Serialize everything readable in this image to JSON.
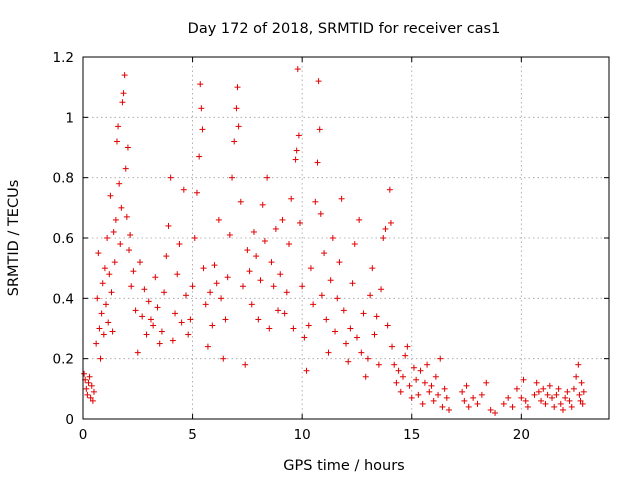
{
  "chart_data": {
    "type": "scatter",
    "title": "Day 172 of 2018, SRMTID for receiver cas1",
    "xlabel": "GPS time / hours",
    "ylabel": "SRMTID / TECUs",
    "xlim": [
      0,
      24
    ],
    "ylim": [
      0,
      1.2
    ],
    "x_ticks": [
      0,
      5,
      10,
      15,
      20
    ],
    "x_tick_labels": [
      "0",
      "5",
      "10",
      "15",
      "20"
    ],
    "y_ticks": [
      0,
      0.2,
      0.4,
      0.6,
      0.8,
      1.0,
      1.2
    ],
    "y_tick_labels": [
      "0",
      "0.2",
      "0.4",
      "0.6",
      "0.8",
      "1",
      "1.2"
    ],
    "grid": true,
    "marker": "+",
    "color": "#e00000",
    "series": [
      {
        "name": "SRMTID",
        "points": [
          [
            0.05,
            0.15
          ],
          [
            0.1,
            0.13
          ],
          [
            0.15,
            0.1
          ],
          [
            0.2,
            0.08
          ],
          [
            0.25,
            0.12
          ],
          [
            0.3,
            0.14
          ],
          [
            0.35,
            0.07
          ],
          [
            0.4,
            0.11
          ],
          [
            0.45,
            0.06
          ],
          [
            0.5,
            0.09
          ],
          [
            0.6,
            0.25
          ],
          [
            0.65,
            0.4
          ],
          [
            0.7,
            0.55
          ],
          [
            0.75,
            0.3
          ],
          [
            0.8,
            0.2
          ],
          [
            0.85,
            0.35
          ],
          [
            0.9,
            0.45
          ],
          [
            0.95,
            0.28
          ],
          [
            1.0,
            0.5
          ],
          [
            1.05,
            0.38
          ],
          [
            1.1,
            0.6
          ],
          [
            1.15,
            0.32
          ],
          [
            1.2,
            0.48
          ],
          [
            1.25,
            0.74
          ],
          [
            1.3,
            0.42
          ],
          [
            1.35,
            0.29
          ],
          [
            1.4,
            0.62
          ],
          [
            1.45,
            0.52
          ],
          [
            1.5,
            0.66
          ],
          [
            1.55,
            0.92
          ],
          [
            1.6,
            0.97
          ],
          [
            1.65,
            0.78
          ],
          [
            1.7,
            0.58
          ],
          [
            1.75,
            0.7
          ],
          [
            1.8,
            1.05
          ],
          [
            1.85,
            1.08
          ],
          [
            1.9,
            1.14
          ],
          [
            1.95,
            0.83
          ],
          [
            2.0,
            0.67
          ],
          [
            2.05,
            0.9
          ],
          [
            2.1,
            0.56
          ],
          [
            2.15,
            0.61
          ],
          [
            2.2,
            0.44
          ],
          [
            2.3,
            0.49
          ],
          [
            2.4,
            0.36
          ],
          [
            2.5,
            0.22
          ],
          [
            2.6,
            0.52
          ],
          [
            2.7,
            0.34
          ],
          [
            2.8,
            0.43
          ],
          [
            2.9,
            0.28
          ],
          [
            3.0,
            0.39
          ],
          [
            3.1,
            0.33
          ],
          [
            3.2,
            0.31
          ],
          [
            3.3,
            0.47
          ],
          [
            3.4,
            0.37
          ],
          [
            3.5,
            0.25
          ],
          [
            3.6,
            0.29
          ],
          [
            3.7,
            0.42
          ],
          [
            3.8,
            0.54
          ],
          [
            3.9,
            0.64
          ],
          [
            4.0,
            0.8
          ],
          [
            4.1,
            0.26
          ],
          [
            4.2,
            0.35
          ],
          [
            4.3,
            0.48
          ],
          [
            4.4,
            0.58
          ],
          [
            4.5,
            0.32
          ],
          [
            4.6,
            0.76
          ],
          [
            4.7,
            0.41
          ],
          [
            4.8,
            0.28
          ],
          [
            4.9,
            0.33
          ],
          [
            5.0,
            0.44
          ],
          [
            5.1,
            0.6
          ],
          [
            5.2,
            0.75
          ],
          [
            5.3,
            0.87
          ],
          [
            5.35,
            1.11
          ],
          [
            5.4,
            1.03
          ],
          [
            5.45,
            0.96
          ],
          [
            5.5,
            0.5
          ],
          [
            5.6,
            0.38
          ],
          [
            5.7,
            0.24
          ],
          [
            5.8,
            0.42
          ],
          [
            5.9,
            0.31
          ],
          [
            6.0,
            0.51
          ],
          [
            6.1,
            0.45
          ],
          [
            6.2,
            0.66
          ],
          [
            6.3,
            0.4
          ],
          [
            6.4,
            0.2
          ],
          [
            6.5,
            0.33
          ],
          [
            6.6,
            0.47
          ],
          [
            6.7,
            0.61
          ],
          [
            6.8,
            0.8
          ],
          [
            6.9,
            0.92
          ],
          [
            7.0,
            1.03
          ],
          [
            7.05,
            1.1
          ],
          [
            7.1,
            0.97
          ],
          [
            7.2,
            0.72
          ],
          [
            7.3,
            0.44
          ],
          [
            7.4,
            0.18
          ],
          [
            7.5,
            0.56
          ],
          [
            7.6,
            0.49
          ],
          [
            7.7,
            0.38
          ],
          [
            7.8,
            0.62
          ],
          [
            7.9,
            0.54
          ],
          [
            8.0,
            0.33
          ],
          [
            8.1,
            0.46
          ],
          [
            8.2,
            0.71
          ],
          [
            8.3,
            0.59
          ],
          [
            8.4,
            0.8
          ],
          [
            8.5,
            0.3
          ],
          [
            8.6,
            0.52
          ],
          [
            8.7,
            0.44
          ],
          [
            8.8,
            0.63
          ],
          [
            8.9,
            0.36
          ],
          [
            9.0,
            0.48
          ],
          [
            9.1,
            0.66
          ],
          [
            9.2,
            0.35
          ],
          [
            9.3,
            0.42
          ],
          [
            9.4,
            0.58
          ],
          [
            9.5,
            0.73
          ],
          [
            9.6,
            0.3
          ],
          [
            9.7,
            0.86
          ],
          [
            9.75,
            0.89
          ],
          [
            9.8,
            1.16
          ],
          [
            9.85,
            0.94
          ],
          [
            9.9,
            0.65
          ],
          [
            10.0,
            0.44
          ],
          [
            10.1,
            0.27
          ],
          [
            10.2,
            0.16
          ],
          [
            10.3,
            0.31
          ],
          [
            10.4,
            0.5
          ],
          [
            10.5,
            0.38
          ],
          [
            10.6,
            0.72
          ],
          [
            10.7,
            0.85
          ],
          [
            10.75,
            1.12
          ],
          [
            10.8,
            0.96
          ],
          [
            10.85,
            0.68
          ],
          [
            10.9,
            0.41
          ],
          [
            11.0,
            0.55
          ],
          [
            11.1,
            0.33
          ],
          [
            11.2,
            0.22
          ],
          [
            11.3,
            0.46
          ],
          [
            11.4,
            0.6
          ],
          [
            11.5,
            0.29
          ],
          [
            11.6,
            0.4
          ],
          [
            11.7,
            0.52
          ],
          [
            11.8,
            0.73
          ],
          [
            11.9,
            0.36
          ],
          [
            12.0,
            0.25
          ],
          [
            12.1,
            0.19
          ],
          [
            12.2,
            0.3
          ],
          [
            12.3,
            0.45
          ],
          [
            12.4,
            0.58
          ],
          [
            12.5,
            0.27
          ],
          [
            12.6,
            0.66
          ],
          [
            12.7,
            0.22
          ],
          [
            12.8,
            0.35
          ],
          [
            12.9,
            0.14
          ],
          [
            13.0,
            0.2
          ],
          [
            13.1,
            0.41
          ],
          [
            13.2,
            0.5
          ],
          [
            13.3,
            0.28
          ],
          [
            13.4,
            0.34
          ],
          [
            13.5,
            0.18
          ],
          [
            13.6,
            0.43
          ],
          [
            13.7,
            0.6
          ],
          [
            13.8,
            0.63
          ],
          [
            13.9,
            0.31
          ],
          [
            14.0,
            0.76
          ],
          [
            14.05,
            0.65
          ],
          [
            14.1,
            0.24
          ],
          [
            14.2,
            0.18
          ],
          [
            14.3,
            0.12
          ],
          [
            14.4,
            0.16
          ],
          [
            14.5,
            0.09
          ],
          [
            14.6,
            0.14
          ],
          [
            14.7,
            0.21
          ],
          [
            14.8,
            0.24
          ],
          [
            14.9,
            0.11
          ],
          [
            15.0,
            0.07
          ],
          [
            15.1,
            0.17
          ],
          [
            15.2,
            0.13
          ],
          [
            15.3,
            0.08
          ],
          [
            15.4,
            0.16
          ],
          [
            15.5,
            0.05
          ],
          [
            15.6,
            0.12
          ],
          [
            15.7,
            0.18
          ],
          [
            15.8,
            0.09
          ],
          [
            15.9,
            0.11
          ],
          [
            16.0,
            0.06
          ],
          [
            16.1,
            0.14
          ],
          [
            16.2,
            0.08
          ],
          [
            16.3,
            0.2
          ],
          [
            16.4,
            0.04
          ],
          [
            16.5,
            0.1
          ],
          [
            16.6,
            0.07
          ],
          [
            16.7,
            0.03
          ],
          [
            17.3,
            0.09
          ],
          [
            17.4,
            0.06
          ],
          [
            17.5,
            0.11
          ],
          [
            17.6,
            0.04
          ],
          [
            17.8,
            0.07
          ],
          [
            18.0,
            0.05
          ],
          [
            18.2,
            0.08
          ],
          [
            18.4,
            0.12
          ],
          [
            18.6,
            0.03
          ],
          [
            18.8,
            0.02
          ],
          [
            19.2,
            0.05
          ],
          [
            19.4,
            0.07
          ],
          [
            19.6,
            0.04
          ],
          [
            19.8,
            0.1
          ],
          [
            20.0,
            0.07
          ],
          [
            20.1,
            0.13
          ],
          [
            20.2,
            0.06
          ],
          [
            20.3,
            0.04
          ],
          [
            20.6,
            0.08
          ],
          [
            20.7,
            0.12
          ],
          [
            20.8,
            0.09
          ],
          [
            20.9,
            0.06
          ],
          [
            21.0,
            0.1
          ],
          [
            21.1,
            0.05
          ],
          [
            21.2,
            0.08
          ],
          [
            21.3,
            0.11
          ],
          [
            21.4,
            0.07
          ],
          [
            21.5,
            0.04
          ],
          [
            21.6,
            0.08
          ],
          [
            21.7,
            0.1
          ],
          [
            21.8,
            0.05
          ],
          [
            21.9,
            0.03
          ],
          [
            22.0,
            0.07
          ],
          [
            22.1,
            0.09
          ],
          [
            22.2,
            0.06
          ],
          [
            22.3,
            0.04
          ],
          [
            22.4,
            0.1
          ],
          [
            22.5,
            0.14
          ],
          [
            22.6,
            0.18
          ],
          [
            22.65,
            0.08
          ],
          [
            22.7,
            0.06
          ],
          [
            22.75,
            0.12
          ],
          [
            22.8,
            0.05
          ],
          [
            22.85,
            0.09
          ]
        ]
      }
    ]
  }
}
